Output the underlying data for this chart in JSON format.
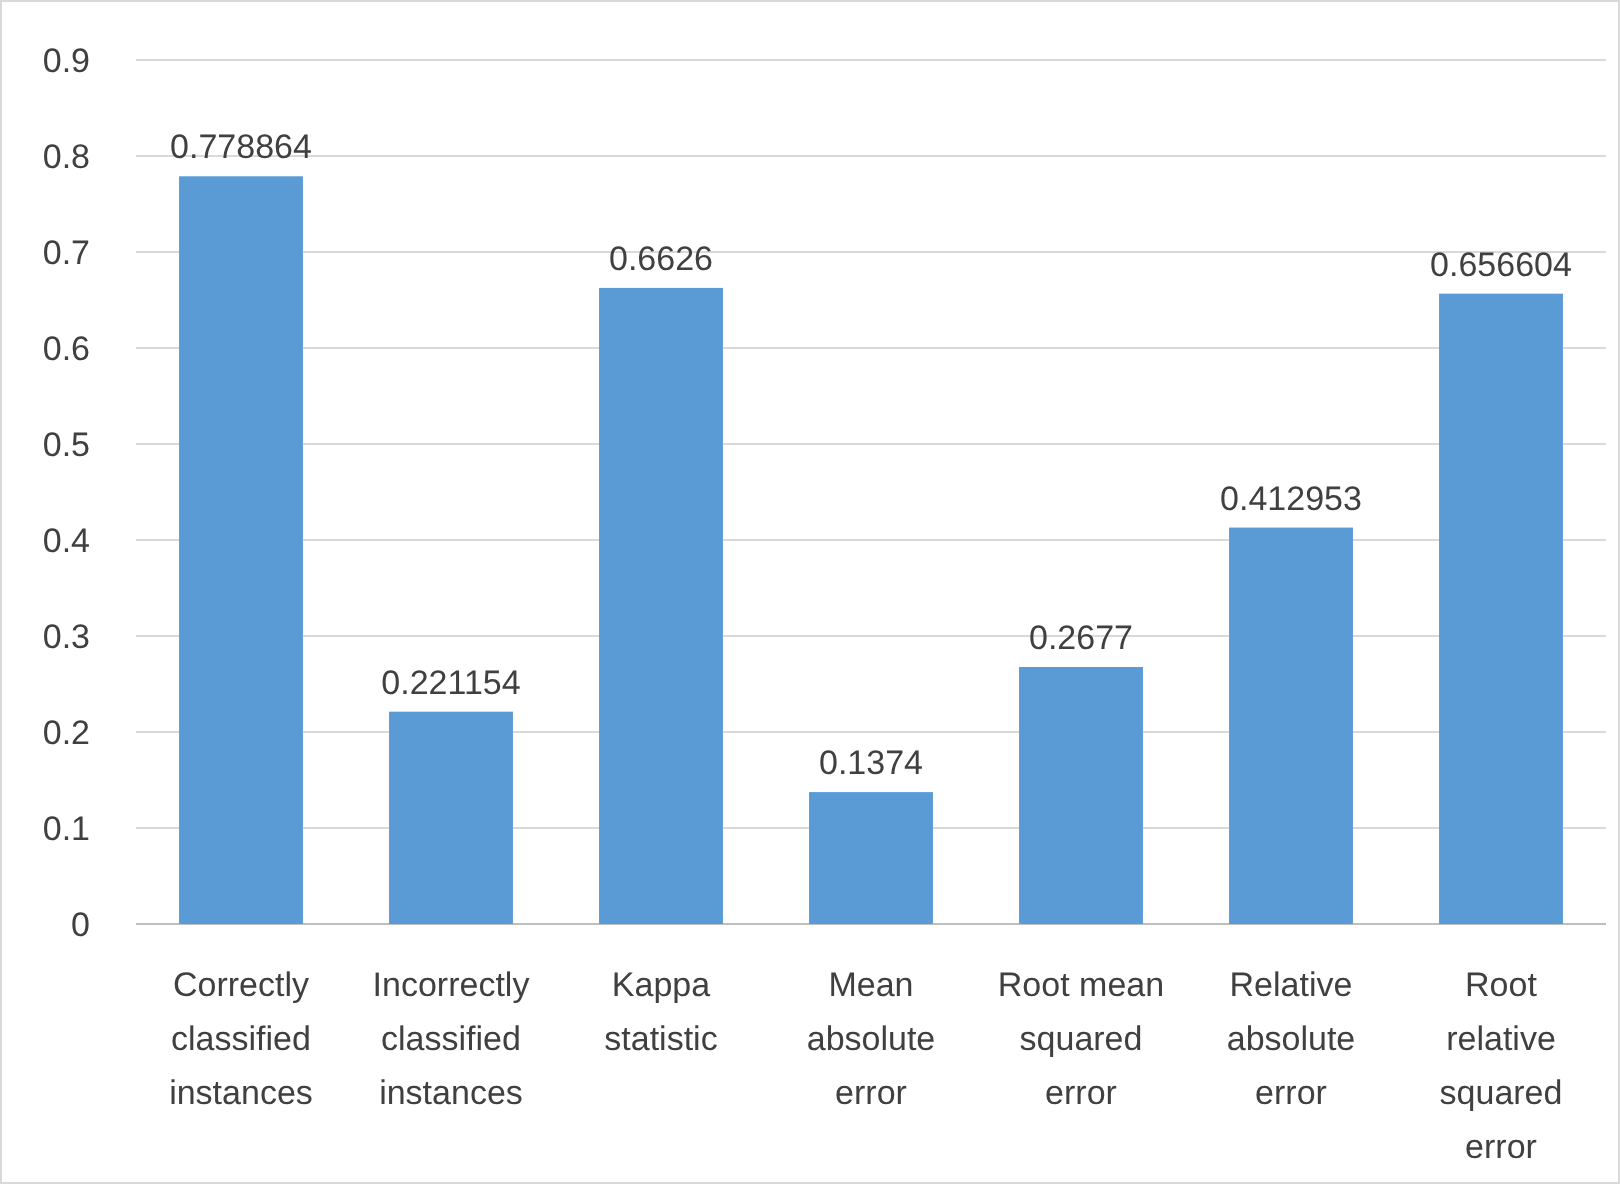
{
  "chart_data": {
    "type": "bar",
    "categories": [
      "Correctly classified instances",
      "Incorrectly classified instances",
      "Kappa statistic",
      "Mean absolute error",
      "Root mean squared error",
      "Relative absolute error",
      "Root relative squared error"
    ],
    "values": [
      0.778864,
      0.221154,
      0.6626,
      0.1374,
      0.2677,
      0.412953,
      0.656604
    ],
    "color": "#5b9bd5",
    "ylim": [
      0,
      0.9
    ],
    "yticks": [
      0,
      0.1,
      0.2,
      0.3,
      0.4,
      0.5,
      0.6,
      0.7,
      0.8,
      0.9
    ],
    "grid": "y",
    "data_labels": true
  }
}
